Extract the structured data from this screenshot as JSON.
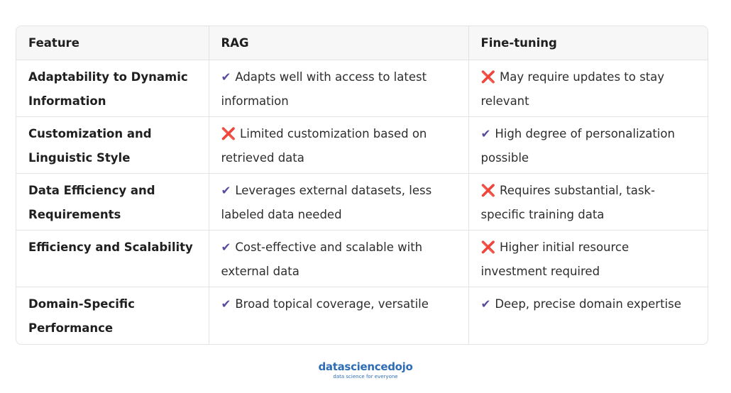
{
  "table": {
    "header": [
      "Feature",
      "RAG",
      "Fine-tuning"
    ],
    "rows": [
      [
        "Adaptability to Dynamic Information",
        {
          "icon": "✔",
          "text": "Adapts well with access to latest information"
        },
        {
          "icon": "❌",
          "text": "May require updates to stay relevant"
        }
      ],
      [
        "Customization and Linguistic Style",
        {
          "icon": "❌",
          "text": "Limited customization based on retrieved data"
        },
        {
          "icon": "✔",
          "text": "High degree of personalization possible"
        }
      ],
      [
        "Data Efficiency and Requirements",
        {
          "icon": "✔",
          "text": "Leverages external datasets, less labeled data needed"
        },
        {
          "icon": "❌",
          "text": "Requires substantial, task-specific training data"
        }
      ],
      [
        "Efficiency and Scalability",
        {
          "icon": "✔",
          "text": "Cost-effective and scalable with external data"
        },
        {
          "icon": "❌",
          "text": "Higher initial resource investment required"
        }
      ],
      [
        "Domain-Specific Performance",
        {
          "icon": "✔",
          "text": "Broad topical coverage, versatile"
        },
        {
          "icon": "✔",
          "text": "Deep, precise domain expertise"
        }
      ]
    ]
  },
  "footer": {
    "brand": "datasciencedojo",
    "tagline": "data science for everyone"
  }
}
